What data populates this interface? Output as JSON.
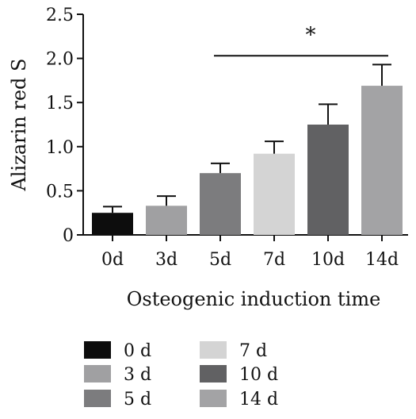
{
  "chart_data": {
    "type": "bar",
    "ylabel": "Alizarin red S",
    "xlabel": "Osteogenic induction time",
    "ylim": [
      0,
      2.5
    ],
    "y_ticks": [
      {
        "value": 0,
        "label": "0"
      },
      {
        "value": 0.5,
        "label": "0.5"
      },
      {
        "value": 1.0,
        "label": "1.0"
      },
      {
        "value": 1.5,
        "label": "1.5"
      },
      {
        "value": 2.0,
        "label": "2.0"
      },
      {
        "value": 2.5,
        "label": "2.5"
      }
    ],
    "categories": [
      "0d",
      "3d",
      "5d",
      "7d",
      "10d",
      "14d"
    ],
    "values": [
      0.25,
      0.33,
      0.7,
      0.92,
      1.25,
      1.69
    ],
    "errors": [
      0.07,
      0.11,
      0.11,
      0.14,
      0.23,
      0.24
    ],
    "colors": [
      "#0d0d0d",
      "#a0a0a2",
      "#7c7c7e",
      "#d4d4d4",
      "#616163",
      "#a3a3a5"
    ],
    "legend": {
      "placement": "bottom",
      "entries": [
        "0 d",
        "3 d",
        "5 d",
        "7 d",
        "10 d",
        "14 d"
      ]
    },
    "annotations": [
      {
        "text": "*",
        "from_category": "5d",
        "to_category": "14d",
        "y": 2.03
      }
    ],
    "grid": false
  }
}
